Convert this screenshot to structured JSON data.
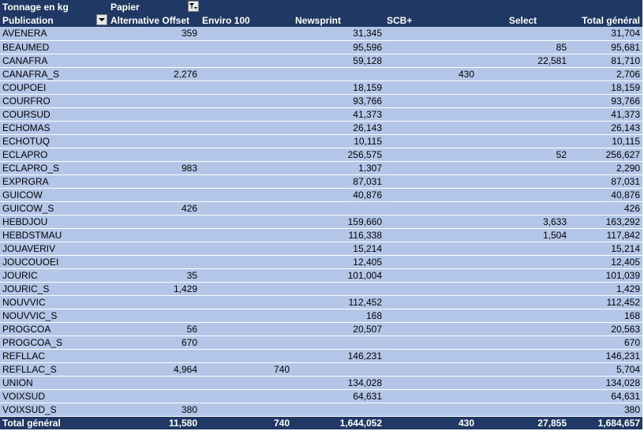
{
  "header": {
    "measure_label": "Tonnage en kg",
    "column_field_label": "Papier",
    "row_field_label": "Publication",
    "columns": [
      "Alternative Offset",
      "Enviro 100",
      "Newsprint",
      "SCB+",
      "Select",
      "Total général"
    ]
  },
  "rows": [
    {
      "name": "AVENERA",
      "values": [
        "359",
        "",
        "31,345",
        "",
        "",
        "31,704"
      ]
    },
    {
      "name": "BEAUMED",
      "values": [
        "",
        "",
        "95,596",
        "",
        "85",
        "95,681"
      ]
    },
    {
      "name": "CANAFRA",
      "values": [
        "",
        "",
        "59,128",
        "",
        "22,581",
        "81,710"
      ]
    },
    {
      "name": "CANAFRA_S",
      "values": [
        "2,276",
        "",
        "",
        "430",
        "",
        "2,706"
      ]
    },
    {
      "name": "COUPOEI",
      "values": [
        "",
        "",
        "18,159",
        "",
        "",
        "18,159"
      ]
    },
    {
      "name": "COURFRO",
      "values": [
        "",
        "",
        "93,766",
        "",
        "",
        "93,766"
      ]
    },
    {
      "name": "COURSUD",
      "values": [
        "",
        "",
        "41,373",
        "",
        "",
        "41,373"
      ]
    },
    {
      "name": "ECHOMAS",
      "values": [
        "",
        "",
        "26,143",
        "",
        "",
        "26,143"
      ]
    },
    {
      "name": "ECHOTUQ",
      "values": [
        "",
        "",
        "10,115",
        "",
        "",
        "10,115"
      ]
    },
    {
      "name": "ECLAPRO",
      "values": [
        "",
        "",
        "256,575",
        "",
        "52",
        "256,627"
      ]
    },
    {
      "name": "ECLAPRO_S",
      "values": [
        "983",
        "",
        "1,307",
        "",
        "",
        "2,290"
      ]
    },
    {
      "name": "EXPRGRA",
      "values": [
        "",
        "",
        "87,031",
        "",
        "",
        "87,031"
      ]
    },
    {
      "name": "GUICOW",
      "values": [
        "",
        "",
        "40,876",
        "",
        "",
        "40,876"
      ]
    },
    {
      "name": "GUICOW_S",
      "values": [
        "426",
        "",
        "",
        "",
        "",
        "426"
      ]
    },
    {
      "name": "HEBDJOU",
      "values": [
        "",
        "",
        "159,660",
        "",
        "3,633",
        "163,292"
      ]
    },
    {
      "name": "HEBDSTMAU",
      "values": [
        "",
        "",
        "116,338",
        "",
        "1,504",
        "117,842"
      ]
    },
    {
      "name": "JOUAVERIV",
      "values": [
        "",
        "",
        "15,214",
        "",
        "",
        "15,214"
      ]
    },
    {
      "name": "JOUCOUOEI",
      "values": [
        "",
        "",
        "12,405",
        "",
        "",
        "12,405"
      ]
    },
    {
      "name": "JOURIC",
      "values": [
        "35",
        "",
        "101,004",
        "",
        "",
        "101,039"
      ]
    },
    {
      "name": "JOURIC_S",
      "values": [
        "1,429",
        "",
        "",
        "",
        "",
        "1,429"
      ]
    },
    {
      "name": "NOUVVIC",
      "values": [
        "",
        "",
        "112,452",
        "",
        "",
        "112,452"
      ]
    },
    {
      "name": "NOUVVIC_S",
      "values": [
        "",
        "",
        "168",
        "",
        "",
        "168"
      ]
    },
    {
      "name": "PROGCOA",
      "values": [
        "56",
        "",
        "20,507",
        "",
        "",
        "20,563"
      ]
    },
    {
      "name": "PROGCOA_S",
      "values": [
        "670",
        "",
        "",
        "",
        "",
        "670"
      ]
    },
    {
      "name": "REFLLAC",
      "values": [
        "",
        "",
        "146,231",
        "",
        "",
        "146,231"
      ]
    },
    {
      "name": "REFLLAC_S",
      "values": [
        "4,964",
        "740",
        "",
        "",
        "",
        "5,704"
      ]
    },
    {
      "name": "UNION",
      "values": [
        "",
        "",
        "134,028",
        "",
        "",
        "134,028"
      ]
    },
    {
      "name": "VOIXSUD",
      "values": [
        "",
        "",
        "64,631",
        "",
        "",
        "64,631"
      ]
    },
    {
      "name": "VOIXSUD_S",
      "values": [
        "380",
        "",
        "",
        "",
        "",
        "380"
      ]
    }
  ],
  "total": {
    "label": "Total général",
    "values": [
      "11,580",
      "740",
      "1,644,052",
      "430",
      "27,855",
      "1,684,657"
    ]
  },
  "colors": {
    "header_bg": "#1f3864",
    "row_bg": "#b4c6e7",
    "row_separator": "#ffffff"
  },
  "icons": {
    "filter_dropdown": "filter-dropdown-icon",
    "row_filter_dropdown": "dropdown-arrow-icon"
  }
}
